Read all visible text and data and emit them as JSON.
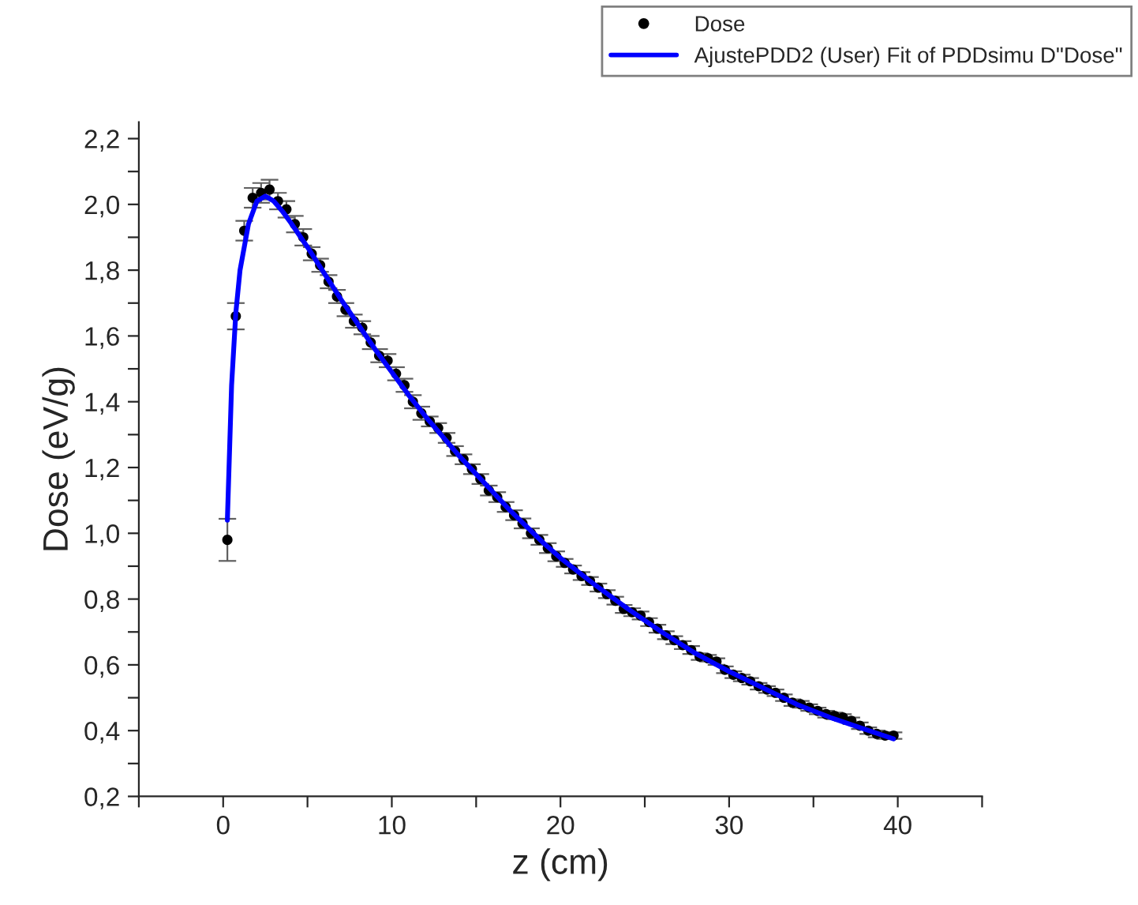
{
  "chart_data": {
    "type": "scatter",
    "xlabel": "z (cm)",
    "ylabel": "Dose (eV/g)",
    "legend": "top right",
    "grid": false,
    "xlim": [
      -5,
      45
    ],
    "xticks": [
      {
        "value": -5,
        "label": null
      },
      0,
      {
        "value": 5,
        "label": null
      },
      10,
      {
        "value": 15,
        "label": null
      },
      20,
      {
        "value": 25,
        "label": null
      },
      30,
      {
        "value": 35,
        "label": null
      },
      40,
      {
        "value": 45,
        "label": null
      }
    ],
    "ylim": [
      0.2,
      2.25
    ],
    "yticks": [
      {
        "value": 0.2,
        "label": "0,2"
      },
      {
        "value": 0.3,
        "label": null
      },
      {
        "value": 0.4,
        "label": "0,4"
      },
      {
        "value": 0.5,
        "label": null
      },
      {
        "value": 0.6,
        "label": "0,6"
      },
      {
        "value": 0.7,
        "label": null
      },
      {
        "value": 0.8,
        "label": "0,8"
      },
      {
        "value": 0.9,
        "label": null
      },
      {
        "value": 1.0,
        "label": "1,0"
      },
      {
        "value": 1.1,
        "label": null
      },
      {
        "value": 1.2,
        "label": "1,2"
      },
      {
        "value": 1.3,
        "label": null
      },
      {
        "value": 1.4,
        "label": "1,4"
      },
      {
        "value": 1.5,
        "label": null
      },
      {
        "value": 1.6,
        "label": "1,6"
      },
      {
        "value": 1.7,
        "label": null
      },
      {
        "value": 1.8,
        "label": "1,8"
      },
      {
        "value": 1.9,
        "label": null
      },
      {
        "value": 2.0,
        "label": "2,0"
      },
      {
        "value": 2.1,
        "label": null
      },
      {
        "value": 2.2,
        "label": "2,2"
      }
    ],
    "series": [
      {
        "name": "Dose",
        "marker": "circle",
        "color": "#000000",
        "x": [
          0.25,
          0.75,
          1.25,
          1.75,
          2.25,
          2.75,
          3.25,
          3.75,
          4.25,
          4.75,
          5.25,
          5.75,
          6.25,
          6.75,
          7.25,
          7.75,
          8.25,
          8.75,
          9.25,
          9.75,
          10.25,
          10.75,
          11.25,
          11.75,
          12.25,
          12.75,
          13.25,
          13.75,
          14.25,
          14.75,
          15.25,
          15.75,
          16.25,
          16.75,
          17.25,
          17.75,
          18.25,
          18.75,
          19.25,
          19.75,
          20.25,
          20.75,
          21.25,
          21.75,
          22.25,
          22.75,
          23.25,
          23.75,
          24.25,
          24.75,
          25.25,
          25.75,
          26.25,
          26.75,
          27.25,
          27.75,
          28.25,
          28.75,
          29.25,
          29.75,
          30.25,
          30.75,
          31.25,
          31.75,
          32.25,
          32.75,
          33.25,
          33.75,
          34.25,
          34.75,
          35.25,
          35.75,
          36.25,
          36.75,
          37.25,
          37.75,
          38.25,
          38.75,
          39.25,
          39.75
        ],
        "values": [
          0.98,
          1.66,
          1.92,
          2.02,
          2.035,
          2.045,
          2.01,
          1.985,
          1.94,
          1.9,
          1.85,
          1.815,
          1.765,
          1.72,
          1.68,
          1.645,
          1.625,
          1.58,
          1.54,
          1.525,
          1.485,
          1.45,
          1.4,
          1.365,
          1.34,
          1.32,
          1.29,
          1.25,
          1.225,
          1.195,
          1.165,
          1.13,
          1.11,
          1.08,
          1.055,
          1.03,
          1.0,
          0.98,
          0.955,
          0.93,
          0.91,
          0.89,
          0.87,
          0.855,
          0.835,
          0.815,
          0.795,
          0.77,
          0.76,
          0.75,
          0.73,
          0.71,
          0.69,
          0.675,
          0.66,
          0.645,
          0.625,
          0.62,
          0.61,
          0.585,
          0.57,
          0.56,
          0.55,
          0.535,
          0.525,
          0.515,
          0.5,
          0.485,
          0.48,
          0.47,
          0.46,
          0.45,
          0.445,
          0.44,
          0.43,
          0.415,
          0.4,
          0.39,
          0.385,
          0.385
        ],
        "errors": [
          0.064,
          0.04,
          0.03,
          0.03,
          0.03,
          0.03,
          0.025,
          0.025,
          0.025,
          0.025,
          0.02,
          0.02,
          0.02,
          0.02,
          0.02,
          0.02,
          0.02,
          0.02,
          0.02,
          0.02,
          0.02,
          0.02,
          0.02,
          0.02,
          0.015,
          0.015,
          0.015,
          0.015,
          0.015,
          0.015,
          0.015,
          0.015,
          0.015,
          0.015,
          0.015,
          0.015,
          0.015,
          0.015,
          0.015,
          0.015,
          0.012,
          0.012,
          0.012,
          0.012,
          0.012,
          0.012,
          0.012,
          0.012,
          0.012,
          0.012,
          0.012,
          0.012,
          0.012,
          0.012,
          0.012,
          0.012,
          0.01,
          0.01,
          0.01,
          0.01,
          0.01,
          0.01,
          0.01,
          0.01,
          0.01,
          0.01,
          0.01,
          0.01,
          0.01,
          0.01,
          0.01,
          0.01,
          0.01,
          0.01,
          0.01,
          0.01,
          0.01,
          0.01,
          0.01,
          0.01
        ]
      },
      {
        "name": "AjustePDD2 (User) Fit of PDDsimu D\"Dose\"",
        "type": "line",
        "marker": "none",
        "color": "#0000ff",
        "line_style": "solid",
        "x": [
          0.25,
          0.5,
          0.75,
          1.0,
          1.5,
          2.0,
          2.5,
          3.0,
          3.5,
          4.0,
          5.0,
          6.0,
          7.0,
          8.0,
          9.0,
          10.0,
          11.0,
          12.0,
          13.0,
          14.0,
          15.0,
          16.0,
          17.0,
          18.0,
          19.0,
          20.0,
          22.0,
          24.0,
          26.0,
          28.0,
          30.0,
          32.0,
          34.0,
          36.0,
          38.0,
          39.75
        ],
        "values": [
          1.04,
          1.45,
          1.67,
          1.8,
          1.94,
          2.01,
          2.025,
          2.01,
          1.98,
          1.945,
          1.87,
          1.79,
          1.71,
          1.635,
          1.56,
          1.49,
          1.42,
          1.355,
          1.295,
          1.235,
          1.18,
          1.125,
          1.07,
          1.02,
          0.97,
          0.925,
          0.845,
          0.77,
          0.7,
          0.635,
          0.58,
          0.53,
          0.48,
          0.44,
          0.405,
          0.375
        ]
      }
    ]
  }
}
